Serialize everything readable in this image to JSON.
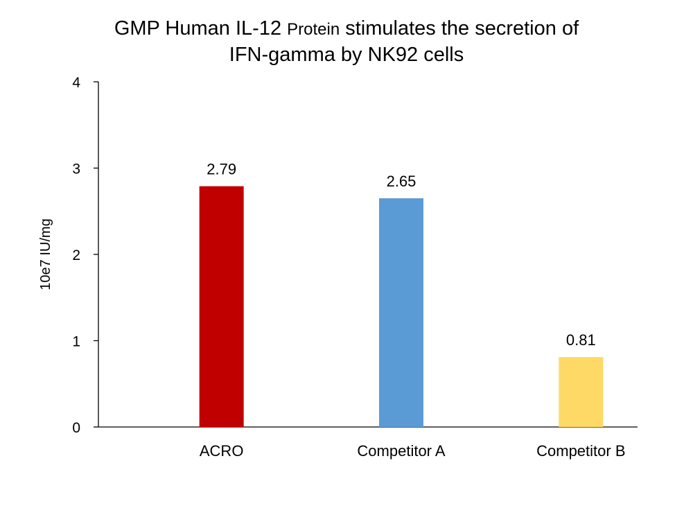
{
  "chart_data": {
    "type": "bar",
    "title_line1_part1": "GMP Human IL-12 ",
    "title_line1_part2": "Protein",
    "title_line1_part3": " stimulates the secretion of",
    "title_line2": "IFN-gamma by NK92 cells",
    "xlabel": "",
    "ylabel": "10e7 IU/mg",
    "ylim": [
      0,
      4
    ],
    "yticks": [
      "0",
      "1",
      "2",
      "3",
      "4"
    ],
    "categories": [
      "ACRO",
      "Competitor A",
      "Competitor B"
    ],
    "values": [
      2.79,
      2.65,
      0.81
    ],
    "data_labels": [
      "2.79",
      "2.65",
      "0.81"
    ],
    "colors": [
      "#c00000",
      "#5b9bd5",
      "#ffd966"
    ],
    "grid": false,
    "legend": "none"
  }
}
